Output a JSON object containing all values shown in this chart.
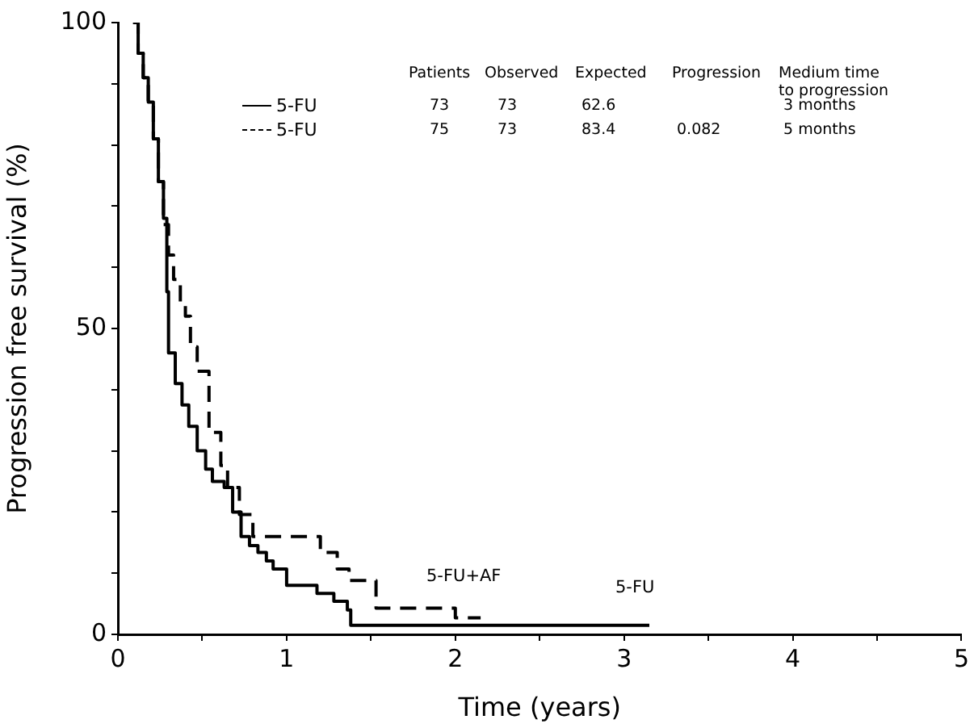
{
  "chart_data": {
    "type": "step",
    "xlabel": "Time (years)",
    "ylabel": "Progression free survival (%)",
    "xlim": [
      0,
      5
    ],
    "ylim": [
      0,
      100
    ],
    "xticks": [
      0,
      {
        "value": 0.5,
        "label": null
      },
      1,
      {
        "value": 1.5,
        "label": null
      },
      2,
      {
        "value": 2.5,
        "label": null
      },
      3,
      {
        "value": 3.5,
        "label": null
      },
      4,
      {
        "value": 4.5,
        "label": null
      },
      5
    ],
    "yticks": [
      0,
      {
        "value": 10,
        "label": null
      },
      {
        "value": 20,
        "label": null
      },
      {
        "value": 30,
        "label": null
      },
      {
        "value": 40,
        "label": null
      },
      50,
      {
        "value": 60,
        "label": null
      },
      {
        "value": 70,
        "label": null
      },
      {
        "value": 80,
        "label": null
      },
      {
        "value": 90,
        "label": null
      },
      100
    ],
    "grid": false,
    "legend": "top",
    "marker": "none",
    "series": [
      {
        "name": "5-FU",
        "color": "#000000",
        "line_style": "solid",
        "x": [
          0.09,
          0.12,
          0.15,
          0.18,
          0.21,
          0.24,
          0.27,
          0.29,
          0.3,
          0.34,
          0.38,
          0.42,
          0.47,
          0.52,
          0.56,
          0.63,
          0.68,
          0.73,
          0.78,
          0.83,
          0.88,
          0.92,
          1.0,
          1.18,
          1.28,
          1.36,
          1.38,
          3.15
        ],
        "values": [
          100,
          95,
          91,
          87,
          81,
          74,
          68,
          56,
          46,
          41,
          37.5,
          34,
          30,
          27,
          25,
          24,
          20,
          16,
          14.5,
          13.4,
          12,
          10.7,
          8,
          6.7,
          5.4,
          4,
          1.5,
          1.5
        ]
      },
      {
        "name": "5-FU",
        "color": "#000000",
        "line_style": "dashed",
        "x": [
          0.09,
          0.12,
          0.15,
          0.18,
          0.21,
          0.24,
          0.27,
          0.3,
          0.33,
          0.37,
          0.4,
          0.43,
          0.47,
          0.54,
          0.61,
          0.65,
          0.72,
          0.8,
          1.2,
          1.3,
          1.37,
          1.53,
          2.0,
          2.15
        ],
        "values": [
          100,
          95,
          91,
          87,
          81,
          74,
          67,
          62,
          58,
          54,
          52,
          47,
          43,
          33,
          27.6,
          24,
          19.6,
          16,
          13.4,
          10.7,
          8.8,
          4.3,
          2.7,
          2.7
        ]
      }
    ],
    "annotations": [
      "5-FU+AF",
      "5-FU",
      "Patients",
      "Observed",
      "Expected",
      "Progression",
      "Medium time\nto progression",
      "73",
      "73",
      "62.6",
      "3 months",
      "75",
      "73",
      "83.4",
      "0.082",
      "5 months"
    ]
  }
}
